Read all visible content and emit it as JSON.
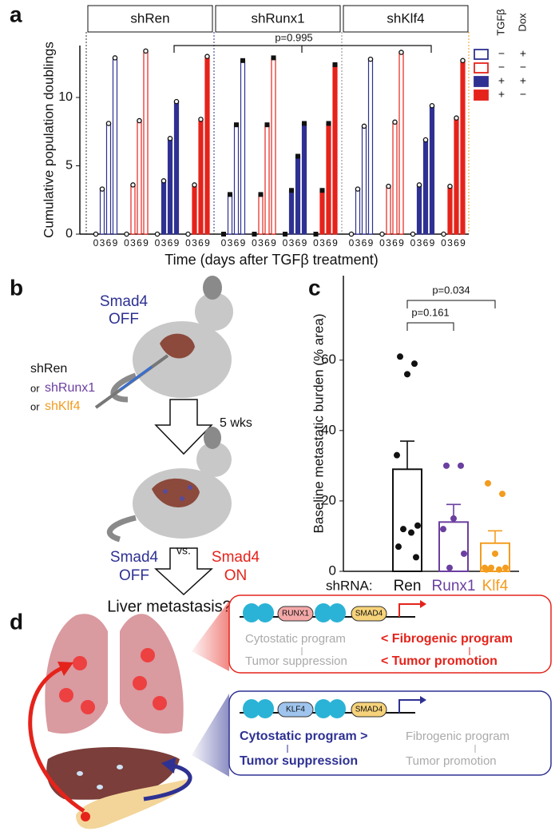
{
  "panel_labels": [
    "a",
    "b",
    "c",
    "d"
  ],
  "chart_data": [
    {
      "type": "bar",
      "categories": [
        "0",
        "3",
        "6",
        "9"
      ],
      "groups": [
        {
          "label": "shRen",
          "marker": "circle",
          "series": [
            {
              "values": [
                0,
                3.3,
                8.1,
                12.9
              ]
            },
            {
              "values": [
                0,
                3.6,
                8.3,
                13.4
              ]
            },
            {
              "values": [
                0,
                3.9,
                7.0,
                9.7
              ]
            },
            {
              "values": [
                0,
                3.6,
                8.4,
                13.0
              ]
            }
          ]
        },
        {
          "label": "shRunx1",
          "marker": "square",
          "series": [
            {
              "values": [
                0,
                2.9,
                8.0,
                12.7
              ]
            },
            {
              "values": [
                0,
                2.9,
                8.0,
                12.9
              ]
            },
            {
              "values": [
                0,
                3.2,
                5.7,
                8.1
              ]
            },
            {
              "values": [
                0,
                3.2,
                8.1,
                12.4
              ]
            }
          ]
        },
        {
          "label": "shKlf4",
          "marker": "circle",
          "series": [
            {
              "values": [
                0,
                3.3,
                7.9,
                12.8
              ]
            },
            {
              "values": [
                0,
                3.5,
                8.2,
                13.3
              ]
            },
            {
              "values": [
                0,
                3.6,
                6.9,
                9.4
              ]
            },
            {
              "values": [
                0,
                3.5,
                8.5,
                12.7
              ]
            }
          ]
        }
      ],
      "conditions": [
        {
          "color": "#2e3192",
          "filled": false,
          "tgfb": "−",
          "dox": "+"
        },
        {
          "color": "#e5231b",
          "filled": false,
          "tgfb": "−",
          "dox": "−"
        },
        {
          "color": "#2e3192",
          "filled": true,
          "tgfb": "+",
          "dox": "+"
        },
        {
          "color": "#e5231b",
          "filled": true,
          "tgfb": "+",
          "dox": "−"
        }
      ],
      "legend_headers": [
        "TGFβ",
        "Dox"
      ],
      "ylim": [
        0,
        13.8
      ],
      "yticks": [
        0,
        5,
        10
      ],
      "xlabel": "Time (days after TGFβ treatment)",
      "ylabel": "Cumulative population doublings",
      "annotation": "p=0.995"
    },
    {
      "type": "bar",
      "categories": [
        "Ren",
        "Runx1",
        "Klf4"
      ],
      "colors": [
        "#111111",
        "#6b3fa0",
        "#f39c1f"
      ],
      "values": [
        29,
        14,
        8
      ],
      "errors": [
        8,
        5,
        3.5
      ],
      "points": [
        [
          61,
          59,
          56,
          33,
          13,
          12,
          11,
          7,
          4
        ],
        [
          30,
          30,
          15,
          12,
          5,
          1
        ],
        [
          25,
          22,
          5,
          1,
          1,
          1,
          0.5,
          0.5
        ]
      ],
      "ylim": [
        0,
        84
      ],
      "yticks": [
        0,
        20,
        40,
        60
      ],
      "ylabel": "Baseline metastatic burden (% area)",
      "category_axis_label": "shRNA:",
      "annotations": [
        "p=0.161",
        "p=0.034"
      ]
    }
  ],
  "diagram_b": {
    "top_label": [
      "Smad4",
      "OFF"
    ],
    "connector": "or",
    "injections": [
      "shRen",
      "shRunx1",
      "shKlf4"
    ],
    "duration": "5 wks",
    "left": [
      "Smad4",
      "OFF"
    ],
    "vs": "vs.",
    "right": [
      "Smad4",
      "ON"
    ],
    "question": "Liver metastasis?"
  },
  "diagram_d": {
    "boxes": [
      {
        "factor": "RUNX1",
        "partner": "SMAD4",
        "row1": [
          "Cytostatic program",
          "< Fibrogenic program"
        ],
        "row2": [
          "Tumor suppression",
          "< Tumor promotion"
        ]
      },
      {
        "factor": "KLF4",
        "partner": "SMAD4",
        "row1": [
          "Cytostatic program >",
          "Fibrogenic program"
        ],
        "row2": [
          "Tumor suppression",
          "Tumor promotion"
        ]
      }
    ]
  }
}
